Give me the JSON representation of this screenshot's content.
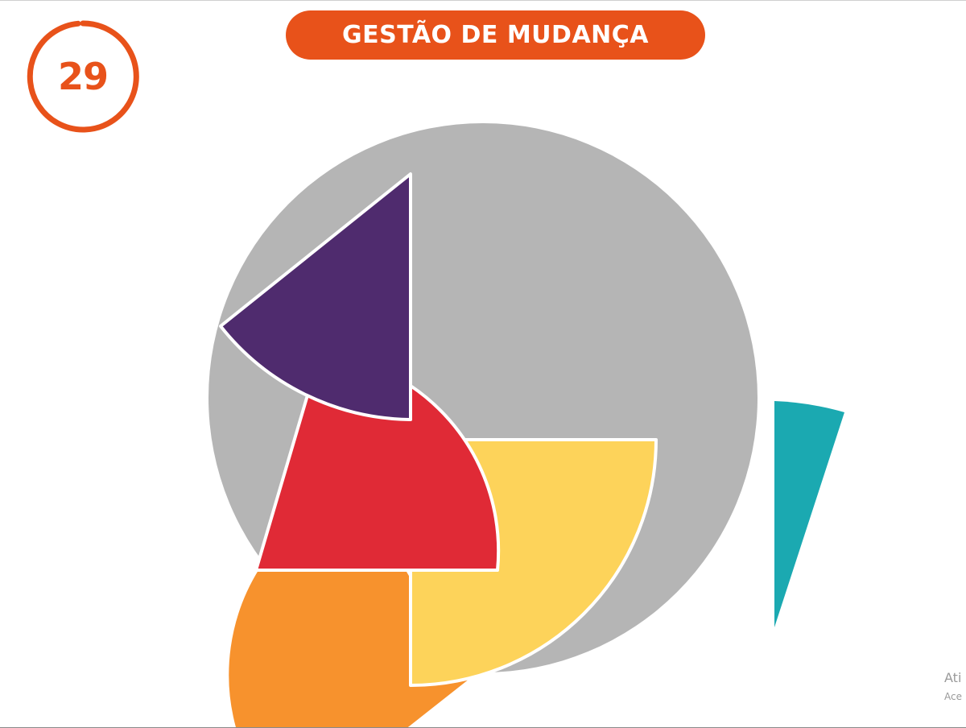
{
  "badge": {
    "number": "29",
    "color": "#e8521a"
  },
  "title": {
    "text": "GESTÃO DE MUDANÇA",
    "background": "#e8521a",
    "color": "#ffffff"
  },
  "shapes": {
    "circle_color": "#b5b5b5",
    "purple": "#4f2b6e",
    "red": "#e02a36",
    "yellow": "#fdd35a",
    "orange": "#f7922d",
    "teal": "#1ba9b1",
    "outline": "#ffffff"
  },
  "watermark": {
    "line1": "Ati",
    "line2": "Ace"
  }
}
